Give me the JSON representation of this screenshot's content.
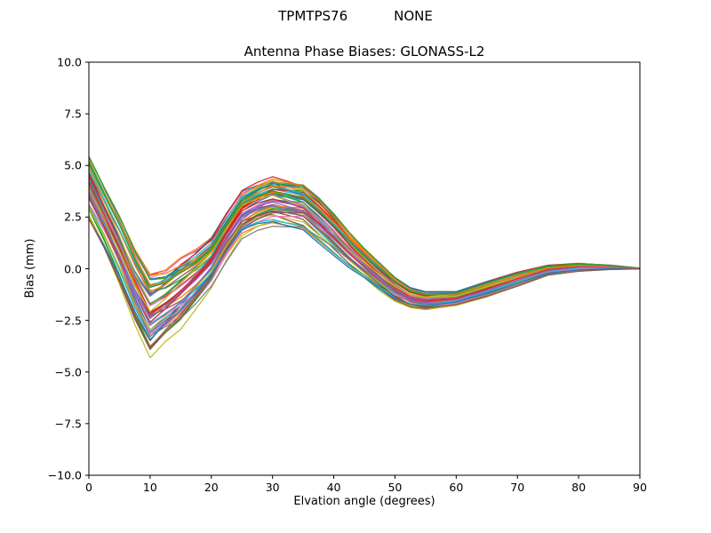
{
  "header": {
    "left": "TPMTPS76",
    "right": "NONE"
  },
  "chart_data": {
    "type": "line",
    "title": "Antenna Phase Biases: GLONASS-L2",
    "suptitle": "TPMTPS76        NONE",
    "xlabel": "Elvation angle (degrees)",
    "ylabel": "Bias (mm)",
    "xlim": [
      0,
      90
    ],
    "ylim": [
      -10,
      10
    ],
    "xticks": [
      0,
      10,
      20,
      30,
      40,
      50,
      60,
      70,
      80,
      90
    ],
    "yticks": [
      -10.0,
      -7.5,
      -5.0,
      -2.5,
      0.0,
      2.5,
      5.0,
      7.5,
      10.0
    ],
    "ytick_labels": [
      "−10.0",
      "−7.5",
      "−5.0",
      "−2.5",
      "0.0",
      "2.5",
      "5.0",
      "7.5",
      "10.0"
    ],
    "grid": false,
    "legend": null,
    "description": "Ensemble of antenna phase bias curves (one per antenna/satellite), all starting near +2 to +5.5 mm at 0 deg, dipping to a minimum near 10 deg, peaking near 30 deg, a shallow trough near 55 deg, converging to 0 mm at 90 deg.",
    "num_lines": 56,
    "x": [
      0,
      2.5,
      5,
      7.5,
      10,
      12.5,
      15,
      17.5,
      20,
      22.5,
      25,
      27.5,
      30,
      32.5,
      35,
      37.5,
      40,
      42.5,
      45,
      47.5,
      50,
      52.5,
      55,
      57.5,
      60,
      65,
      70,
      75,
      80,
      85,
      90
    ],
    "mean": [
      3.85,
      2.4,
      0.85,
      -0.9,
      -2.3,
      -1.8,
      -1.2,
      -0.5,
      0.3,
      1.55,
      2.65,
      3.05,
      3.3,
      3.15,
      3.0,
      2.35,
      1.65,
      0.9,
      0.25,
      -0.4,
      -1.0,
      -1.4,
      -1.55,
      -1.5,
      -1.45,
      -1.0,
      -0.53,
      -0.08,
      0.08,
      0.08,
      0.01
    ],
    "envelope_upper": [
      5.5,
      4.0,
      2.6,
      1.0,
      -0.2,
      0.0,
      0.6,
      1.0,
      1.6,
      2.8,
      3.9,
      4.3,
      4.6,
      4.4,
      4.2,
      3.5,
      2.7,
      1.8,
      1.0,
      0.3,
      -0.4,
      -0.9,
      -1.1,
      -1.1,
      -1.1,
      -0.6,
      -0.15,
      0.2,
      0.3,
      0.2,
      0.03
    ],
    "envelope_lower": [
      2.2,
      0.8,
      -0.9,
      -2.8,
      -4.4,
      -3.6,
      -3.0,
      -2.0,
      -1.0,
      0.3,
      1.4,
      1.8,
      2.0,
      1.9,
      1.8,
      1.2,
      0.6,
      0.0,
      -0.5,
      -1.1,
      -1.6,
      -1.9,
      -2.0,
      -1.9,
      -1.8,
      -1.4,
      -0.9,
      -0.35,
      -0.15,
      -0.05,
      -0.01
    ],
    "palette": [
      "#1f77b4",
      "#ff7f0e",
      "#2ca02c",
      "#d62728",
      "#9467bd",
      "#8c564b",
      "#e377c2",
      "#7f7f7f",
      "#bcbd22",
      "#17becf"
    ]
  }
}
